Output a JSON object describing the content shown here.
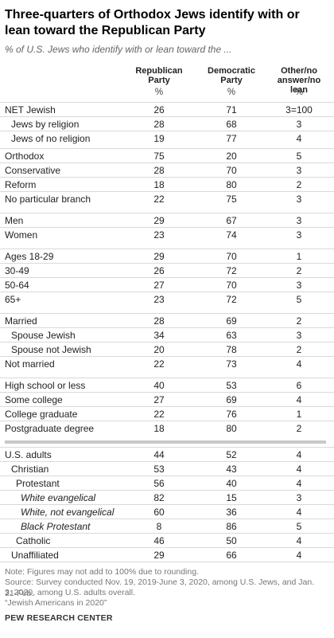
{
  "chart_data": {
    "type": "table",
    "title": "Three-quarters of Orthodox Jews identify with or lean toward the Republican Party",
    "subtitle": "% of U.S. Jews who identify with or lean toward the ...",
    "columns": [
      "Republican Party",
      "Democratic Party",
      "Other/no answer/no lean"
    ],
    "column_lines": [
      [
        "Republican",
        "Party"
      ],
      [
        "Democratic",
        "Party"
      ],
      [
        "Other/no",
        "answer/no lean"
      ]
    ],
    "unit_label": "%",
    "rows": [
      {
        "label": "NET Jewish",
        "indent": 0,
        "italic": false,
        "values": [
          "26",
          "71",
          "3=100"
        ]
      },
      {
        "label": "Jews by religion",
        "indent": 1,
        "italic": false,
        "values": [
          "28",
          "68",
          "3"
        ]
      },
      {
        "label": "Jews of no religion",
        "indent": 1,
        "italic": false,
        "values": [
          "19",
          "77",
          "4"
        ]
      },
      {
        "label": "Orthodox",
        "indent": 0,
        "italic": false,
        "values": [
          "75",
          "20",
          "5"
        ]
      },
      {
        "label": "Conservative",
        "indent": 0,
        "italic": false,
        "values": [
          "28",
          "70",
          "3"
        ]
      },
      {
        "label": "Reform",
        "indent": 0,
        "italic": false,
        "values": [
          "18",
          "80",
          "2"
        ]
      },
      {
        "label": "No particular branch",
        "indent": 0,
        "italic": false,
        "values": [
          "22",
          "75",
          "3"
        ]
      },
      {
        "label": "Men",
        "indent": 0,
        "italic": false,
        "values": [
          "29",
          "67",
          "3"
        ]
      },
      {
        "label": "Women",
        "indent": 0,
        "italic": false,
        "values": [
          "23",
          "74",
          "3"
        ]
      },
      {
        "label": "Ages 18-29",
        "indent": 0,
        "italic": false,
        "values": [
          "29",
          "70",
          "1"
        ]
      },
      {
        "label": "30-49",
        "indent": 0,
        "italic": false,
        "values": [
          "26",
          "72",
          "2"
        ]
      },
      {
        "label": "50-64",
        "indent": 0,
        "italic": false,
        "values": [
          "27",
          "70",
          "3"
        ]
      },
      {
        "label": "65+",
        "indent": 0,
        "italic": false,
        "values": [
          "23",
          "72",
          "5"
        ]
      },
      {
        "label": "Married",
        "indent": 0,
        "italic": false,
        "values": [
          "28",
          "69",
          "2"
        ]
      },
      {
        "label": "Spouse Jewish",
        "indent": 1,
        "italic": false,
        "values": [
          "34",
          "63",
          "3"
        ]
      },
      {
        "label": "Spouse not Jewish",
        "indent": 1,
        "italic": false,
        "values": [
          "20",
          "78",
          "2"
        ]
      },
      {
        "label": "Not married",
        "indent": 0,
        "italic": false,
        "values": [
          "22",
          "73",
          "4"
        ]
      },
      {
        "label": "High school or less",
        "indent": 0,
        "italic": false,
        "values": [
          "40",
          "53",
          "6"
        ]
      },
      {
        "label": "Some college",
        "indent": 0,
        "italic": false,
        "values": [
          "27",
          "69",
          "4"
        ]
      },
      {
        "label": "College graduate",
        "indent": 0,
        "italic": false,
        "values": [
          "22",
          "76",
          "1"
        ]
      },
      {
        "label": "Postgraduate degree",
        "indent": 0,
        "italic": false,
        "values": [
          "18",
          "80",
          "2"
        ]
      },
      {
        "label": "U.S. adults",
        "indent": 0,
        "italic": false,
        "values": [
          "44",
          "52",
          "4"
        ]
      },
      {
        "label": "Christian",
        "indent": 1,
        "italic": false,
        "values": [
          "53",
          "43",
          "4"
        ]
      },
      {
        "label": "Protestant",
        "indent": 2,
        "italic": false,
        "values": [
          "56",
          "40",
          "4"
        ]
      },
      {
        "label": "White evangelical",
        "indent": 3,
        "italic": true,
        "values": [
          "82",
          "15",
          "3"
        ]
      },
      {
        "label": "White, not evangelical",
        "indent": 3,
        "italic": true,
        "values": [
          "60",
          "36",
          "4"
        ]
      },
      {
        "label": "Black Protestant",
        "indent": 3,
        "italic": true,
        "values": [
          "8",
          "86",
          "5"
        ]
      },
      {
        "label": "Catholic",
        "indent": 2,
        "italic": false,
        "values": [
          "46",
          "50",
          "4"
        ]
      },
      {
        "label": "Unaffiliated",
        "indent": 1,
        "italic": false,
        "values": [
          "29",
          "66",
          "4"
        ]
      }
    ]
  },
  "notes": [
    "Note: Figures may not add to 100% due to rounding.",
    "Source: Survey conducted Nov. 19, 2019-June 3, 2020, among U.S. Jews, and Jan. 21-Feb.",
    "3, 2020, among U.S. adults overall.",
    "“Jewish Americans in 2020”"
  ],
  "source_org": "PEW RESEARCH CENTER"
}
